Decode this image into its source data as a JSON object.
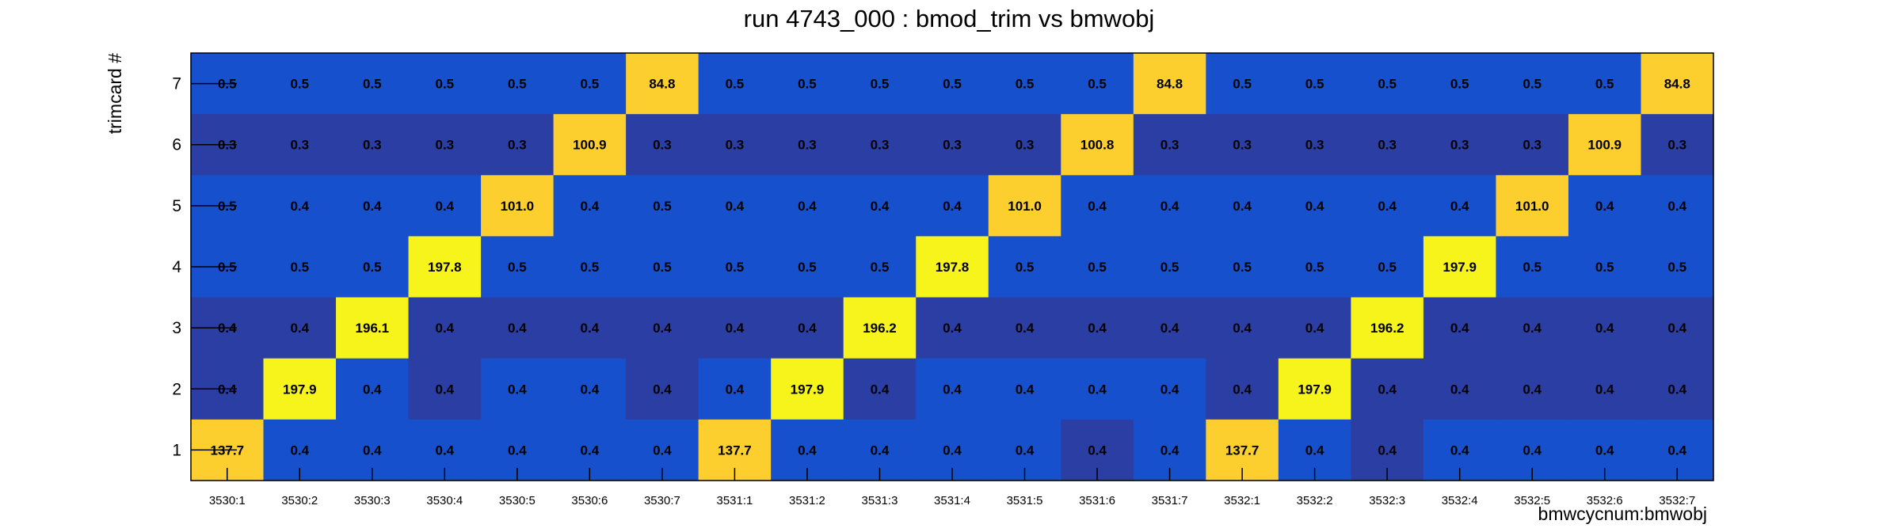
{
  "chart_data": {
    "type": "heatmap",
    "title": "run 4743_000 : bmod_trim vs bmwobj",
    "xlabel": "bmwcycnum:bmwobj",
    "ylabel": "trimcard #",
    "x_categories": [
      "3530:1",
      "3530:2",
      "3530:3",
      "3530:4",
      "3530:5",
      "3530:6",
      "3530:7",
      "3531:1",
      "3531:2",
      "3531:3",
      "3531:4",
      "3531:5",
      "3531:6",
      "3531:7",
      "3532:1",
      "3532:2",
      "3532:3",
      "3532:4",
      "3532:5",
      "3532:6",
      "3532:7"
    ],
    "y_categories": [
      "1",
      "2",
      "3",
      "4",
      "5",
      "6",
      "7"
    ],
    "rows": [
      {
        "y": "7",
        "values": [
          "0.5",
          "0.5",
          "0.5",
          "0.5",
          "0.5",
          "0.5",
          "84.8",
          "0.5",
          "0.5",
          "0.5",
          "0.5",
          "0.5",
          "0.5",
          "84.8",
          "0.5",
          "0.5",
          "0.5",
          "0.5",
          "0.5",
          "0.5",
          "84.8"
        ]
      },
      {
        "y": "6",
        "values": [
          "0.3",
          "0.3",
          "0.3",
          "0.3",
          "0.3",
          "100.9",
          "0.3",
          "0.3",
          "0.3",
          "0.3",
          "0.3",
          "0.3",
          "100.8",
          "0.3",
          "0.3",
          "0.3",
          "0.3",
          "0.3",
          "0.3",
          "100.9",
          "0.3"
        ]
      },
      {
        "y": "5",
        "values": [
          "0.5",
          "0.4",
          "0.4",
          "0.4",
          "101.0",
          "0.4",
          "0.5",
          "0.4",
          "0.4",
          "0.4",
          "0.4",
          "101.0",
          "0.4",
          "0.4",
          "0.4",
          "0.4",
          "0.4",
          "0.4",
          "101.0",
          "0.4",
          "0.4"
        ]
      },
      {
        "y": "4",
        "values": [
          "0.5",
          "0.5",
          "0.5",
          "197.8",
          "0.5",
          "0.5",
          "0.5",
          "0.5",
          "0.5",
          "0.5",
          "197.8",
          "0.5",
          "0.5",
          "0.5",
          "0.5",
          "0.5",
          "0.5",
          "197.9",
          "0.5",
          "0.5",
          "0.5"
        ]
      },
      {
        "y": "3",
        "values": [
          "0.4",
          "0.4",
          "196.1",
          "0.4",
          "0.4",
          "0.4",
          "0.4",
          "0.4",
          "0.4",
          "196.2",
          "0.4",
          "0.4",
          "0.4",
          "0.4",
          "0.4",
          "0.4",
          "196.2",
          "0.4",
          "0.4",
          "0.4",
          "0.4"
        ]
      },
      {
        "y": "2",
        "values": [
          "0.4",
          "197.9",
          "0.4",
          "0.4",
          "0.4",
          "0.4",
          "0.4",
          "0.4",
          "197.9",
          "0.4",
          "0.4",
          "0.4",
          "0.4",
          "0.4",
          "0.4",
          "197.9",
          "0.4",
          "0.4",
          "0.4",
          "0.4",
          "0.4"
        ]
      },
      {
        "y": "1",
        "values": [
          "137.7",
          "0.4",
          "0.4",
          "0.4",
          "0.4",
          "0.4",
          "0.4",
          "137.7",
          "0.4",
          "0.4",
          "0.4",
          "0.4",
          "0.4",
          "0.4",
          "137.7",
          "0.4",
          "0.4",
          "0.4",
          "0.4",
          "0.4",
          "0.4"
        ]
      }
    ],
    "colors": {
      "high": "#f6f41b",
      "upper_mid": "#fccf2e",
      "low": "#1750cd",
      "lowest": "#2b3ea3",
      "frame": "#000000"
    },
    "grid": false,
    "legend": "none"
  }
}
